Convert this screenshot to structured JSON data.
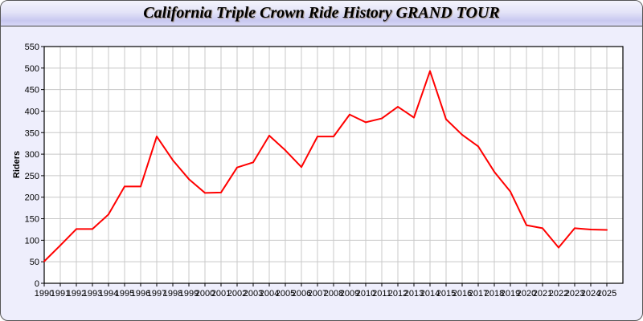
{
  "chart_data": {
    "type": "line",
    "title": "California Triple Crown Ride History GRAND TOUR",
    "xlabel": "",
    "ylabel": "Riders",
    "ylim": [
      0,
      550
    ],
    "yticks": [
      0,
      50,
      100,
      150,
      200,
      250,
      300,
      350,
      400,
      450,
      500,
      550
    ],
    "xlim": [
      1990,
      2026
    ],
    "grid": true,
    "x": [
      1990,
      1991,
      1992,
      1993,
      1994,
      1995,
      1996,
      1997,
      1998,
      1999,
      2000,
      2001,
      2002,
      2003,
      2004,
      2005,
      2006,
      2007,
      2008,
      2009,
      2010,
      2011,
      2012,
      2013,
      2014,
      2015,
      2016,
      2017,
      2018,
      2019,
      2020,
      2021,
      2022,
      2023,
      2024,
      2025
    ],
    "series": [
      {
        "values": [
          51,
          88,
          126,
          126,
          160,
          225,
          225,
          341,
          286,
          242,
          210,
          211,
          269,
          281,
          343,
          309,
          270,
          341,
          341,
          392,
          374,
          383,
          410,
          385,
          493,
          381,
          345,
          318,
          259,
          213,
          135,
          128,
          83,
          128,
          125,
          124
        ],
        "color": "#ff0000"
      }
    ]
  },
  "colors": {
    "background": "#eeeefc",
    "line": "#ff0000",
    "grid": "#c8c8c8"
  }
}
